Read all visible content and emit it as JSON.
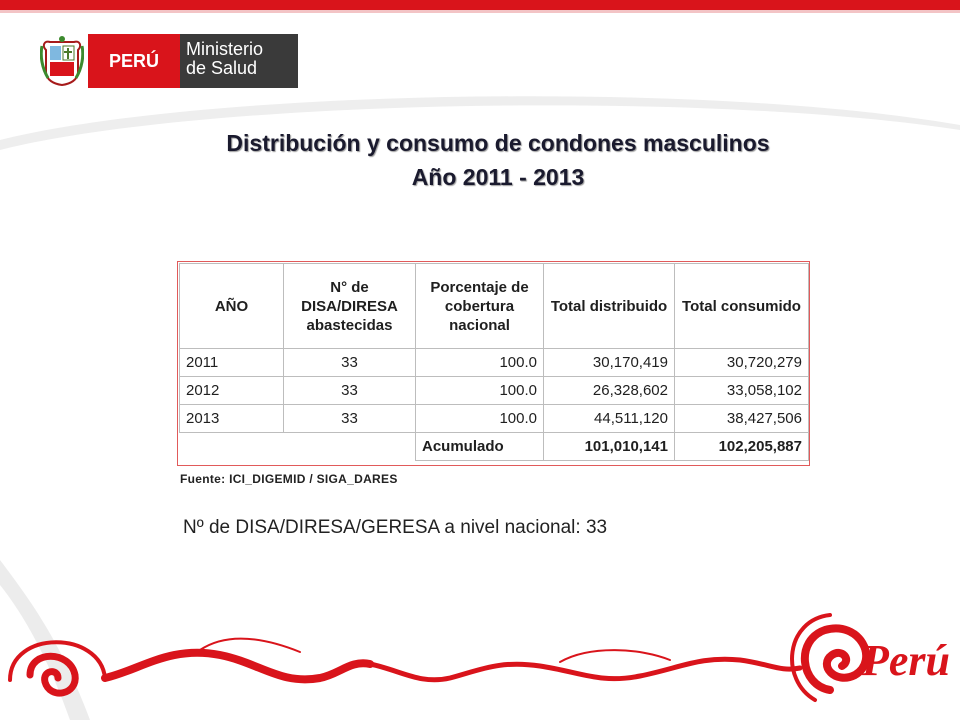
{
  "header": {
    "logo_country": "PERÚ",
    "logo_ministry_line1": "Ministerio",
    "logo_ministry_line2": "de Salud"
  },
  "title": {
    "line1": "Distribución y consumo de condones masculinos",
    "line2": "Año 2011 - 2013"
  },
  "table": {
    "headers": [
      "AÑO",
      "N° de DISA/DIRESA abastecidas",
      "Porcentaje de cobertura nacional",
      "Total distribuido",
      "Total consumido"
    ],
    "rows": [
      [
        "2011",
        "33",
        "100.0",
        "30,170,419",
        "30,720,279"
      ],
      [
        "2012",
        "33",
        "100.0",
        "26,328,602",
        "33,058,102"
      ],
      [
        "2013",
        "33",
        "100.0",
        "44,511,120",
        "38,427,506"
      ]
    ],
    "total_label": "Acumulado",
    "total_distribuido": "101,010,141",
    "total_consumido": "102,205,887"
  },
  "source": "Fuente: ICI_DIGEMID / SIGA_DARES",
  "note": "Nº de DISA/DIRESA/GERESA a nivel nacional: 33",
  "footer": {
    "brand_logo_text": "Perú"
  },
  "colors": {
    "brand_red": "#d9141b",
    "dark_gray": "#3a3a3a",
    "table_border": "#e15a5a"
  }
}
